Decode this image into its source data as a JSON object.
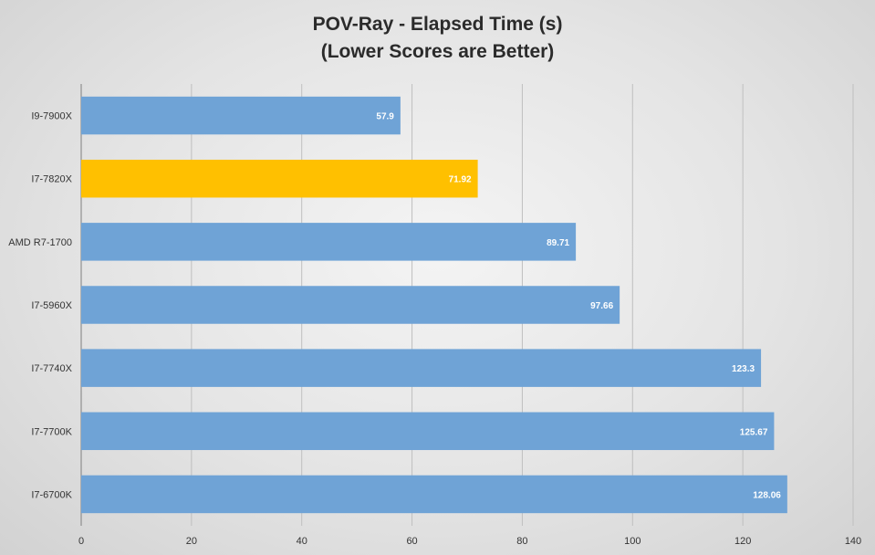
{
  "chart_data": {
    "type": "bar",
    "orientation": "horizontal",
    "title": "POV-Ray - Elapsed Time (s)",
    "subtitle": "(Lower Scores are Better)",
    "categories": [
      "I9-7900X",
      "I7-7820X",
      "AMD R7-1700",
      "I7-5960X",
      "I7-7740X",
      "I7-7700K",
      "I7-6700K"
    ],
    "values": [
      57.9,
      71.92,
      89.71,
      97.66,
      123.3,
      125.67,
      128.06
    ],
    "data_labels": [
      "57.9",
      "71.92",
      "89.71",
      "97.66",
      "123.3",
      "125.67",
      "128.06"
    ],
    "highlight_category": "I7-7820X",
    "colors": {
      "bar": "#6fa3d6",
      "highlight": "#ffc000",
      "grid": "#bfbfbf",
      "axis": "#7f7f7f"
    },
    "xlim": [
      0,
      140
    ],
    "x_ticks": [
      0,
      20,
      40,
      60,
      80,
      100,
      120,
      140
    ],
    "grid": true,
    "legend": "none",
    "xlabel": "",
    "ylabel": ""
  }
}
